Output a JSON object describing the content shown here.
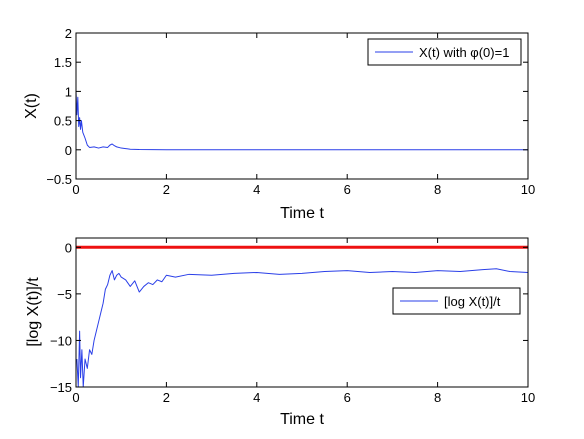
{
  "colors": {
    "series": "#2a3fe8",
    "reference": "#ee1111",
    "axis": "#000000",
    "background": "#ffffff"
  },
  "chart_data": [
    {
      "type": "line",
      "xlabel": "Time t",
      "ylabel": "X(t)",
      "xlim": [
        0,
        10
      ],
      "ylim": [
        -0.5,
        2
      ],
      "xticks": [
        "0",
        "2",
        "4",
        "6",
        "8",
        "10"
      ],
      "yticks": [
        "−0.5",
        "0",
        "0.5",
        "1",
        "1.5",
        "2"
      ],
      "legend": {
        "position": "top-right"
      },
      "grid": false,
      "series": [
        {
          "name": "X(t) with φ(0)=1",
          "color": "#2a3fe8",
          "x": [
            0,
            0.02,
            0.04,
            0.06,
            0.08,
            0.1,
            0.12,
            0.15,
            0.2,
            0.25,
            0.3,
            0.4,
            0.5,
            0.6,
            0.7,
            0.75,
            0.8,
            0.85,
            0.9,
            1.0,
            1.1,
            1.2,
            1.4,
            2,
            3,
            4,
            5,
            6,
            7,
            8,
            9,
            10
          ],
          "y": [
            1.0,
            0.6,
            0.9,
            0.4,
            0.55,
            0.35,
            0.5,
            0.3,
            0.2,
            0.08,
            0.04,
            0.05,
            0.03,
            0.05,
            0.04,
            0.08,
            0.1,
            0.07,
            0.05,
            0.03,
            0.02,
            0.01,
            0.005,
            0.001,
            0.0005,
            0.0003,
            0.0002,
            0.0001,
            0.0001,
            0.0001,
            0.0001,
            0.0001
          ]
        }
      ]
    },
    {
      "type": "line",
      "xlabel": "Time t",
      "ylabel": "[log X(t)]/t",
      "xlim": [
        0,
        10
      ],
      "ylim": [
        -15,
        1
      ],
      "xticks": [
        "0",
        "2",
        "4",
        "6",
        "8",
        "10"
      ],
      "yticks": [
        "−15",
        "−10",
        "−5",
        "0"
      ],
      "legend": {
        "position": "right"
      },
      "grid": false,
      "series": [
        {
          "name": "[log X(t)]/t",
          "color": "#2a3fe8",
          "x": [
            0.02,
            0.05,
            0.08,
            0.1,
            0.13,
            0.16,
            0.2,
            0.25,
            0.3,
            0.35,
            0.4,
            0.45,
            0.5,
            0.55,
            0.6,
            0.65,
            0.7,
            0.75,
            0.8,
            0.85,
            0.9,
            0.95,
            1.0,
            1.1,
            1.2,
            1.3,
            1.4,
            1.5,
            1.6,
            1.7,
            1.8,
            1.9,
            2.0,
            2.2,
            2.5,
            3.0,
            3.5,
            4.0,
            4.5,
            5.0,
            5.5,
            6.0,
            6.5,
            7.0,
            7.5,
            8.0,
            8.5,
            9.0,
            9.3,
            9.6,
            10.0
          ],
          "y": [
            -12,
            -15,
            -9,
            -14,
            -11,
            -15,
            -12,
            -13,
            -11,
            -11.5,
            -10,
            -9,
            -8,
            -7,
            -6,
            -4.5,
            -4,
            -3,
            -2.5,
            -3.5,
            -3,
            -2.8,
            -3.2,
            -3.5,
            -4.2,
            -3.6,
            -4.8,
            -4.2,
            -3.8,
            -4.0,
            -3.5,
            -3.7,
            -3.0,
            -3.2,
            -2.9,
            -3.0,
            -2.8,
            -2.7,
            -2.9,
            -2.8,
            -2.6,
            -2.5,
            -2.7,
            -2.6,
            -2.7,
            -2.5,
            -2.6,
            -2.4,
            -2.3,
            -2.6,
            -2.7
          ]
        },
        {
          "name": "",
          "color": "#ee1111",
          "x": [
            0,
            10
          ],
          "y": [
            0,
            0
          ]
        }
      ]
    }
  ]
}
